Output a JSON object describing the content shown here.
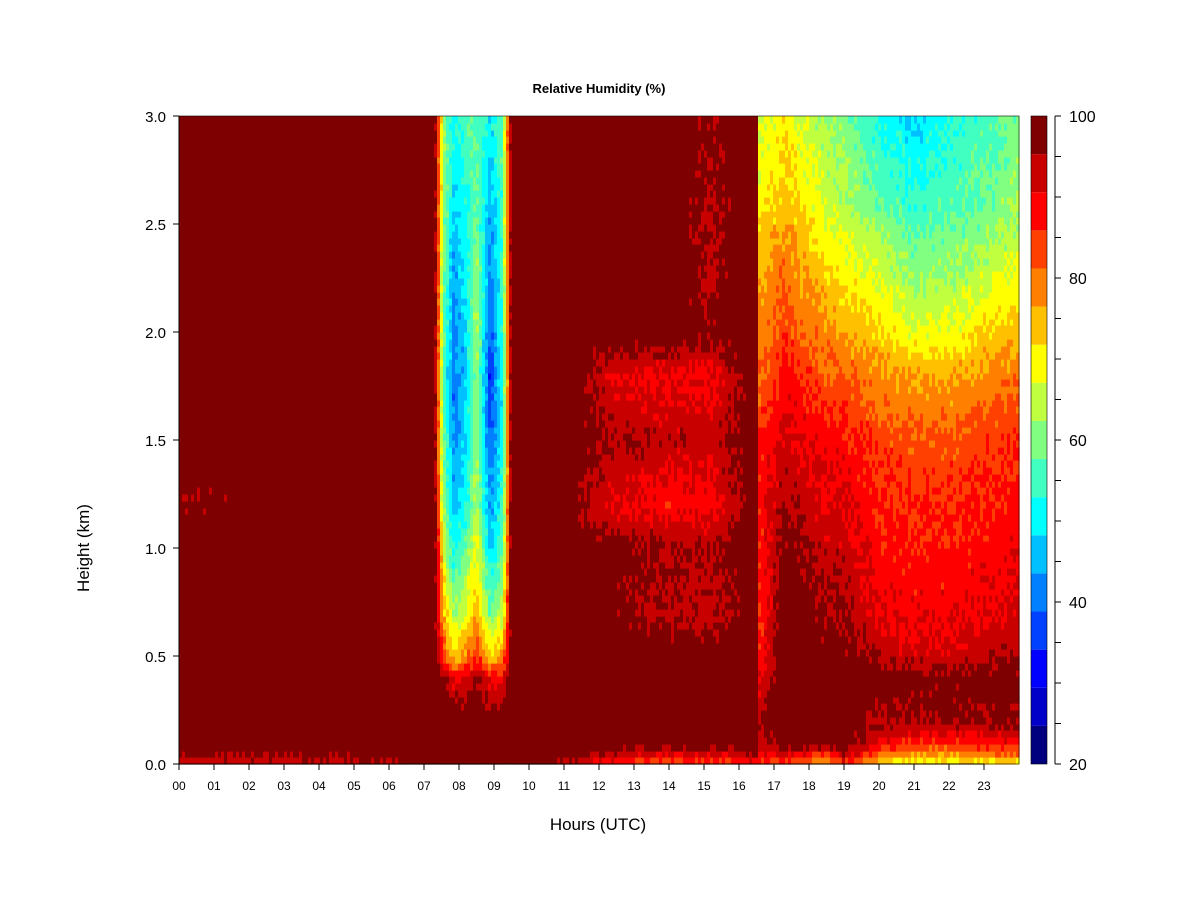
{
  "chart_data": {
    "type": "heatmap",
    "title": "Relative Humidity (%)",
    "xlabel": "Hours (UTC)",
    "ylabel": "Height (km)",
    "xlim": [
      0,
      24
    ],
    "ylim": [
      0,
      3
    ],
    "x_ticks": [
      0,
      1,
      2,
      3,
      4,
      5,
      6,
      7,
      8,
      9,
      10,
      11,
      12,
      13,
      14,
      15,
      16,
      17,
      18,
      19,
      20,
      21,
      22,
      23
    ],
    "x_tick_labels": [
      "00",
      "01",
      "02",
      "03",
      "04",
      "05",
      "06",
      "07",
      "08",
      "09",
      "10",
      "11",
      "12",
      "13",
      "14",
      "15",
      "16",
      "17",
      "18",
      "19",
      "20",
      "21",
      "22",
      "23"
    ],
    "y_ticks": [
      0.0,
      0.5,
      1.0,
      1.5,
      2.0,
      2.5,
      3.0
    ],
    "y_tick_labels": [
      "0.0",
      "0.5",
      "1.0",
      "1.5",
      "2.0",
      "2.5",
      "3.0"
    ],
    "colorbar": {
      "min": 20,
      "max": 100,
      "levels": [
        20,
        25,
        30,
        35,
        40,
        45,
        50,
        55,
        60,
        65,
        70,
        75,
        80,
        85,
        90,
        95,
        100
      ],
      "tick_values": [
        20,
        40,
        60,
        80,
        100
      ],
      "tick_labels": [
        "20",
        "40",
        "60",
        "80",
        "100"
      ],
      "colors": [
        "#00007F",
        "#0000C8",
        "#0000FF",
        "#0040FF",
        "#0080FF",
        "#00C0FF",
        "#00FFFF",
        "#40FFC0",
        "#80FF80",
        "#C0FF40",
        "#FFFF00",
        "#FFC000",
        "#FF8000",
        "#FF4000",
        "#FF0000",
        "#C80000",
        "#7F0000"
      ]
    },
    "grid": false,
    "profiles": {
      "heights_km": [
        0.0,
        0.05,
        0.1,
        0.2,
        0.4,
        0.5,
        0.7,
        1.0,
        1.2,
        1.5,
        1.8,
        2.0,
        2.3,
        2.6,
        3.0
      ],
      "columns": [
        {
          "hour": 0.0,
          "rh": [
            92,
            96,
            100,
            100,
            100,
            100,
            100,
            100,
            96,
            100,
            100,
            100,
            100,
            100,
            100
          ]
        },
        {
          "hour": 1.0,
          "rh": [
            92,
            96,
            100,
            100,
            100,
            100,
            100,
            100,
            97,
            100,
            100,
            100,
            100,
            100,
            100
          ]
        },
        {
          "hour": 3.5,
          "rh": [
            93,
            97,
            100,
            100,
            100,
            100,
            100,
            100,
            99,
            100,
            100,
            100,
            100,
            100,
            100
          ]
        },
        {
          "hour": 6.0,
          "rh": [
            94,
            98,
            100,
            100,
            100,
            100,
            100,
            100,
            100,
            100,
            100,
            100,
            100,
            100,
            100
          ]
        },
        {
          "hour": 7.3,
          "rh": [
            98,
            100,
            100,
            100,
            100,
            100,
            100,
            100,
            100,
            100,
            100,
            100,
            100,
            100,
            100
          ]
        },
        {
          "hour": 7.55,
          "rh": [
            100,
            100,
            100,
            100,
            96,
            86,
            75,
            68,
            62,
            58,
            57,
            58,
            60,
            62,
            62
          ]
        },
        {
          "hour": 7.85,
          "rh": [
            100,
            100,
            100,
            100,
            90,
            74,
            62,
            52,
            46,
            42,
            40,
            42,
            44,
            48,
            52
          ]
        },
        {
          "hour": 8.2,
          "rh": [
            100,
            100,
            100,
            100,
            92,
            78,
            68,
            58,
            52,
            48,
            47,
            48,
            50,
            52,
            56
          ]
        },
        {
          "hour": 8.5,
          "rh": [
            100,
            100,
            100,
            100,
            96,
            86,
            76,
            68,
            64,
            62,
            62,
            64,
            62,
            58,
            58
          ]
        },
        {
          "hour": 8.9,
          "rh": [
            100,
            100,
            100,
            100,
            88,
            72,
            58,
            48,
            42,
            38,
            34,
            38,
            40,
            44,
            50
          ]
        },
        {
          "hour": 9.25,
          "rh": [
            100,
            100,
            100,
            100,
            90,
            78,
            66,
            58,
            54,
            52,
            52,
            54,
            56,
            56,
            58
          ]
        },
        {
          "hour": 9.5,
          "rh": [
            100,
            100,
            100,
            100,
            100,
            100,
            100,
            100,
            100,
            100,
            100,
            100,
            100,
            100,
            100
          ]
        },
        {
          "hour": 11.0,
          "rh": [
            94,
            99,
            100,
            100,
            100,
            100,
            100,
            100,
            98,
            100,
            100,
            100,
            100,
            100,
            100
          ]
        },
        {
          "hour": 12.5,
          "rh": [
            86,
            94,
            100,
            100,
            100,
            100,
            97,
            98,
            90,
            95,
            90,
            100,
            100,
            100,
            100
          ]
        },
        {
          "hour": 14.0,
          "rh": [
            82,
            92,
            99,
            100,
            100,
            100,
            94,
            96,
            88,
            94,
            89,
            100,
            100,
            100,
            100
          ]
        },
        {
          "hour": 15.2,
          "rh": [
            82,
            92,
            98,
            100,
            100,
            99,
            93,
            95,
            88,
            93,
            89,
            97,
            94,
            95,
            96
          ]
        },
        {
          "hour": 16.0,
          "rh": [
            84,
            94,
            99,
            100,
            100,
            100,
            97,
            98,
            95,
            97,
            95,
            100,
            99,
            98,
            100
          ]
        },
        {
          "hour": 16.5,
          "rh": [
            86,
            96,
            100,
            100,
            100,
            100,
            100,
            100,
            100,
            100,
            100,
            100,
            100,
            100,
            100
          ]
        },
        {
          "hour": 16.58,
          "rh": [
            84,
            88,
            92,
            94,
            90,
            86,
            86,
            86,
            88,
            86,
            80,
            78,
            74,
            70,
            66
          ]
        },
        {
          "hour": 17.3,
          "rh": [
            84,
            92,
            100,
            100,
            100,
            100,
            100,
            98,
            96,
            92,
            88,
            84,
            80,
            74,
            70
          ]
        },
        {
          "hour": 18.5,
          "rh": [
            72,
            86,
            100,
            100,
            100,
            98,
            96,
            93,
            91,
            88,
            82,
            78,
            72,
            66,
            62
          ]
        },
        {
          "hour": 19.0,
          "rh": [
            86,
            96,
            100,
            100,
            100,
            98,
            96,
            93,
            91,
            88,
            82,
            76,
            70,
            64,
            60
          ]
        },
        {
          "hour": 20.0,
          "rh": [
            72,
            82,
            90,
            96,
            98,
            94,
            90,
            88,
            87,
            84,
            78,
            72,
            66,
            58,
            52
          ]
        },
        {
          "hour": 21.0,
          "rh": [
            68,
            78,
            86,
            95,
            98,
            92,
            89,
            87,
            86,
            82,
            76,
            68,
            60,
            54,
            48
          ]
        },
        {
          "hour": 22.0,
          "rh": [
            68,
            78,
            86,
            96,
            98,
            92,
            89,
            87,
            86,
            82,
            76,
            68,
            62,
            56,
            52
          ]
        },
        {
          "hour": 23.0,
          "rh": [
            70,
            80,
            88,
            96,
            98,
            94,
            90,
            88,
            87,
            84,
            78,
            72,
            64,
            58,
            56
          ]
        },
        {
          "hour": 24.0,
          "rh": [
            70,
            80,
            88,
            96,
            98,
            95,
            91,
            89,
            88,
            86,
            80,
            74,
            68,
            62,
            60
          ]
        }
      ]
    }
  }
}
